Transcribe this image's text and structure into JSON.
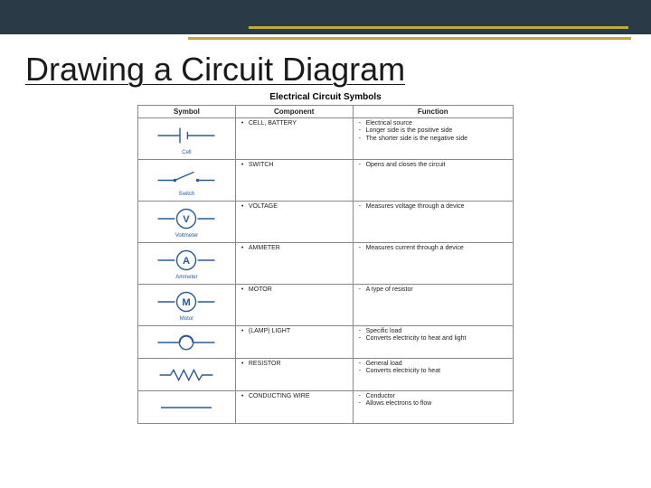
{
  "colors": {
    "topbar": "#2a3b47",
    "gold": "#c2a836",
    "symbol_stroke": "#2a5a9a",
    "caption_color": "#2a5a9a",
    "border": "#888888",
    "text": "#1a1a1a"
  },
  "title": "Drawing a Circuit Diagram",
  "subtitle": "Electrical Circuit Symbols",
  "headers": {
    "c1": "Symbol",
    "c2": "Component",
    "c3": "Function"
  },
  "rows": [
    {
      "icon": "cell",
      "caption": "Cell",
      "component": "CELL, BATTERY",
      "functions": [
        "Electrical source",
        "Longer side is the positive side",
        "The shorter side is the negative side"
      ]
    },
    {
      "icon": "switch",
      "caption": "Switch",
      "component": "SWITCH",
      "functions": [
        "Opens and closes the circuit"
      ]
    },
    {
      "icon": "voltmeter",
      "caption": "Voltmeter",
      "component": "VOLTAGE",
      "functions": [
        "Measures voltage through a device"
      ]
    },
    {
      "icon": "ammeter",
      "caption": "Ammeter",
      "component": "AMMETER",
      "functions": [
        "Measures current through a device"
      ]
    },
    {
      "icon": "motor",
      "caption": "Motor",
      "component": "MOTOR",
      "functions": [
        "A type of resistor"
      ]
    },
    {
      "icon": "lamp",
      "caption": "",
      "component": "(LAMP) LIGHT",
      "functions": [
        "Specific load",
        "Converts electricity to heat and light"
      ]
    },
    {
      "icon": "resistor",
      "caption": "",
      "component": "RESISTOR",
      "functions": [
        "General load",
        "Converts electricity to heat"
      ]
    },
    {
      "icon": "wire",
      "caption": "",
      "component": "CONDUCTING WIRE",
      "functions": [
        "Conductor",
        "Allows electrons to flow"
      ]
    }
  ]
}
